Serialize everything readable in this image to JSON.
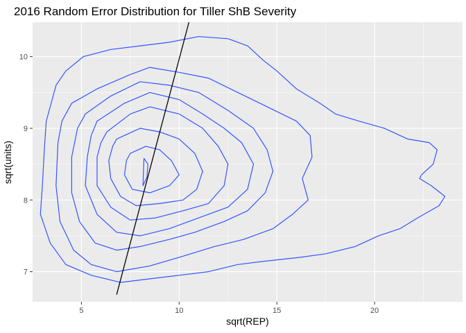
{
  "chart_data": {
    "type": "contour",
    "title": "2016 Random Error Distribution for Tiller ShB Severity",
    "xlabel": "sqrt(REP)",
    "ylabel": "sqrt(units)",
    "xlim": [
      2.5,
      24.5
    ],
    "ylim": [
      6.58,
      10.48
    ],
    "x_ticks": [
      5,
      10,
      15,
      20
    ],
    "y_ticks": [
      7,
      8,
      9,
      10
    ],
    "x_minor": [
      7.5,
      12.5,
      17.5,
      22.5
    ],
    "y_minor": [
      7.5,
      8.5,
      9.5
    ],
    "grid": true,
    "panel_background": "#ebebeb",
    "contour_color": "#3355ff",
    "line_color": "#000000",
    "reference_line": {
      "x": [
        6.8,
        10.5
      ],
      "y": [
        6.68,
        10.48
      ]
    },
    "contours": [
      [
        [
          3.5,
          9.4
        ],
        [
          3.7,
          9.6
        ],
        [
          4.2,
          9.8
        ],
        [
          5.1,
          10.0
        ],
        [
          6.5,
          10.1
        ],
        [
          8.0,
          10.15
        ],
        [
          9.5,
          10.2
        ],
        [
          11.0,
          10.28
        ],
        [
          12.5,
          10.25
        ],
        [
          13.5,
          10.15
        ],
        [
          14.3,
          9.95
        ],
        [
          15.0,
          9.8
        ],
        [
          16.0,
          9.55
        ],
        [
          17.2,
          9.35
        ],
        [
          18.0,
          9.2
        ],
        [
          19.2,
          9.1
        ],
        [
          20.5,
          9.0
        ],
        [
          21.7,
          8.85
        ],
        [
          22.8,
          8.8
        ],
        [
          23.2,
          8.7
        ],
        [
          23.0,
          8.5
        ],
        [
          22.4,
          8.35
        ],
        [
          22.3,
          8.3
        ],
        [
          22.9,
          8.2
        ],
        [
          23.6,
          8.05
        ],
        [
          23.3,
          7.92
        ],
        [
          22.2,
          7.75
        ],
        [
          21.3,
          7.6
        ],
        [
          20.2,
          7.5
        ],
        [
          19.0,
          7.35
        ],
        [
          17.5,
          7.25
        ],
        [
          16.2,
          7.2
        ],
        [
          14.5,
          7.15
        ],
        [
          13.0,
          7.1
        ],
        [
          11.5,
          7.0
        ],
        [
          10.0,
          6.95
        ],
        [
          8.5,
          6.9
        ],
        [
          7.0,
          6.85
        ],
        [
          5.5,
          6.95
        ],
        [
          4.2,
          7.1
        ],
        [
          3.4,
          7.4
        ],
        [
          2.9,
          7.8
        ],
        [
          3.0,
          8.2
        ],
        [
          3.1,
          8.7
        ],
        [
          3.2,
          9.1
        ],
        [
          3.5,
          9.4
        ]
      ],
      [
        [
          4.5,
          9.35
        ],
        [
          5.8,
          9.55
        ],
        [
          7.5,
          9.75
        ],
        [
          8.5,
          9.85
        ],
        [
          10.0,
          9.78
        ],
        [
          11.5,
          9.7
        ],
        [
          13.0,
          9.5
        ],
        [
          14.5,
          9.3
        ],
        [
          16.0,
          9.1
        ],
        [
          16.7,
          8.9
        ],
        [
          16.8,
          8.6
        ],
        [
          16.3,
          8.3
        ],
        [
          16.6,
          8.0
        ],
        [
          15.8,
          7.8
        ],
        [
          14.8,
          7.6
        ],
        [
          13.3,
          7.45
        ],
        [
          11.8,
          7.35
        ],
        [
          10.0,
          7.2
        ],
        [
          8.5,
          7.08
        ],
        [
          6.8,
          7.0
        ],
        [
          5.5,
          7.1
        ],
        [
          4.6,
          7.3
        ],
        [
          3.9,
          7.7
        ],
        [
          3.7,
          8.2
        ],
        [
          3.8,
          8.8
        ],
        [
          4.0,
          9.1
        ],
        [
          4.5,
          9.35
        ]
      ],
      [
        [
          5.2,
          9.2
        ],
        [
          6.5,
          9.45
        ],
        [
          8.0,
          9.65
        ],
        [
          9.5,
          9.6
        ],
        [
          11.0,
          9.5
        ],
        [
          12.5,
          9.25
        ],
        [
          13.8,
          9.0
        ],
        [
          14.5,
          8.7
        ],
        [
          14.8,
          8.4
        ],
        [
          14.4,
          8.1
        ],
        [
          13.5,
          7.85
        ],
        [
          12.3,
          7.7
        ],
        [
          10.8,
          7.55
        ],
        [
          9.5,
          7.45
        ],
        [
          8.0,
          7.35
        ],
        [
          6.8,
          7.3
        ],
        [
          5.7,
          7.4
        ],
        [
          4.9,
          7.7
        ],
        [
          4.5,
          8.1
        ],
        [
          4.5,
          8.6
        ],
        [
          4.8,
          9.0
        ],
        [
          5.2,
          9.2
        ]
      ],
      [
        [
          5.8,
          9.1
        ],
        [
          7.2,
          9.35
        ],
        [
          8.5,
          9.5
        ],
        [
          10.0,
          9.4
        ],
        [
          11.2,
          9.2
        ],
        [
          12.3,
          9.0
        ],
        [
          13.2,
          8.8
        ],
        [
          13.8,
          8.5
        ],
        [
          13.5,
          8.15
        ],
        [
          12.5,
          7.9
        ],
        [
          11.0,
          7.75
        ],
        [
          9.5,
          7.6
        ],
        [
          8.0,
          7.5
        ],
        [
          6.8,
          7.55
        ],
        [
          5.8,
          7.8
        ],
        [
          5.2,
          8.2
        ],
        [
          5.3,
          8.6
        ],
        [
          5.5,
          8.9
        ],
        [
          5.8,
          9.1
        ]
      ],
      [
        [
          6.3,
          8.95
        ],
        [
          7.5,
          9.2
        ],
        [
          8.5,
          9.3
        ],
        [
          10.0,
          9.2
        ],
        [
          11.2,
          9.0
        ],
        [
          12.0,
          8.75
        ],
        [
          12.5,
          8.5
        ],
        [
          12.3,
          8.2
        ],
        [
          11.5,
          7.95
        ],
        [
          10.2,
          7.85
        ],
        [
          8.8,
          7.75
        ],
        [
          7.5,
          7.72
        ],
        [
          6.5,
          7.9
        ],
        [
          5.8,
          8.2
        ],
        [
          5.8,
          8.6
        ],
        [
          6.0,
          8.8
        ],
        [
          6.3,
          8.95
        ]
      ],
      [
        [
          6.8,
          8.85
        ],
        [
          8.0,
          9.0
        ],
        [
          9.0,
          8.95
        ],
        [
          10.0,
          8.85
        ],
        [
          10.8,
          8.65
        ],
        [
          11.2,
          8.4
        ],
        [
          10.9,
          8.15
        ],
        [
          10.2,
          8.0
        ],
        [
          9.0,
          7.95
        ],
        [
          7.8,
          7.92
        ],
        [
          7.0,
          8.05
        ],
        [
          6.5,
          8.3
        ],
        [
          6.4,
          8.55
        ],
        [
          6.6,
          8.75
        ],
        [
          6.8,
          8.85
        ]
      ],
      [
        [
          7.5,
          8.65
        ],
        [
          8.3,
          8.75
        ],
        [
          9.0,
          8.7
        ],
        [
          9.6,
          8.55
        ],
        [
          10.0,
          8.35
        ],
        [
          9.5,
          8.2
        ],
        [
          8.5,
          8.1
        ],
        [
          7.6,
          8.15
        ],
        [
          7.2,
          8.35
        ],
        [
          7.3,
          8.55
        ],
        [
          7.5,
          8.65
        ]
      ],
      [
        [
          8.2,
          8.58
        ],
        [
          8.4,
          8.5
        ],
        [
          8.35,
          8.32
        ],
        [
          8.15,
          8.2
        ],
        [
          8.2,
          8.58
        ]
      ]
    ]
  }
}
